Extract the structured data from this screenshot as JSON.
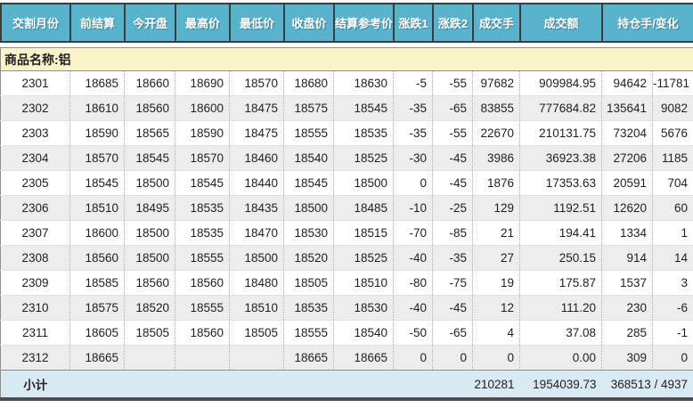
{
  "table": {
    "columns": [
      "交割月份",
      "前结算",
      "今开盘",
      "最高价",
      "最低价",
      "收盘价",
      "结算参考价",
      "涨跌1",
      "涨跌2",
      "成交手",
      "成交额",
      "持仓手/变化"
    ],
    "commodity_label": "商品名称:铝",
    "rows": [
      [
        "2301",
        "18685",
        "18660",
        "18690",
        "18570",
        "18680",
        "18630",
        "-5",
        "-55",
        "97682",
        "909984.95",
        "94642",
        "-11781"
      ],
      [
        "2302",
        "18610",
        "18560",
        "18600",
        "18475",
        "18575",
        "18545",
        "-35",
        "-65",
        "83855",
        "777684.82",
        "135641",
        "9082"
      ],
      [
        "2303",
        "18590",
        "18565",
        "18590",
        "18475",
        "18555",
        "18535",
        "-35",
        "-55",
        "22670",
        "210131.75",
        "73204",
        "5676"
      ],
      [
        "2304",
        "18570",
        "18545",
        "18570",
        "18460",
        "18540",
        "18525",
        "-30",
        "-45",
        "3986",
        "36923.38",
        "27206",
        "1185"
      ],
      [
        "2305",
        "18545",
        "18500",
        "18545",
        "18440",
        "18545",
        "18500",
        "0",
        "-45",
        "1876",
        "17353.63",
        "20591",
        "704"
      ],
      [
        "2306",
        "18510",
        "18495",
        "18535",
        "18435",
        "18500",
        "18485",
        "-10",
        "-25",
        "129",
        "1192.51",
        "12620",
        "60"
      ],
      [
        "2307",
        "18600",
        "18500",
        "18535",
        "18470",
        "18530",
        "18515",
        "-70",
        "-85",
        "21",
        "194.41",
        "1334",
        "1"
      ],
      [
        "2308",
        "18560",
        "18500",
        "18555",
        "18500",
        "18520",
        "18525",
        "-40",
        "-35",
        "27",
        "250.15",
        "914",
        "14"
      ],
      [
        "2309",
        "18585",
        "18560",
        "18560",
        "18480",
        "18505",
        "18510",
        "-80",
        "-75",
        "19",
        "175.87",
        "1537",
        "3"
      ],
      [
        "2310",
        "18575",
        "18520",
        "18555",
        "18510",
        "18535",
        "18530",
        "-40",
        "-45",
        "12",
        "111.20",
        "230",
        "-6"
      ],
      [
        "2311",
        "18605",
        "18505",
        "18560",
        "18505",
        "18555",
        "18540",
        "-50",
        "-65",
        "4",
        "37.08",
        "285",
        "-1"
      ],
      [
        "2312",
        "18665",
        "",
        "",
        "",
        "18665",
        "18665",
        "0",
        "0",
        "0",
        "0.00",
        "309",
        "0"
      ]
    ],
    "subtotal": {
      "label": "小计",
      "volume": "210281",
      "turnover": "1954039.73",
      "oi_combined": "368513 / 4937"
    }
  },
  "colors": {
    "header_bg": "#5AB3CD",
    "header_text": "#ffffff",
    "commodity_row_bg": "#FBF4CB",
    "alt_row_bg": "#EDEDED",
    "subtotal_row_bg": "#D9EAF4",
    "bottom_bar": "#4f4f4f",
    "text": "#1f1f1f"
  }
}
